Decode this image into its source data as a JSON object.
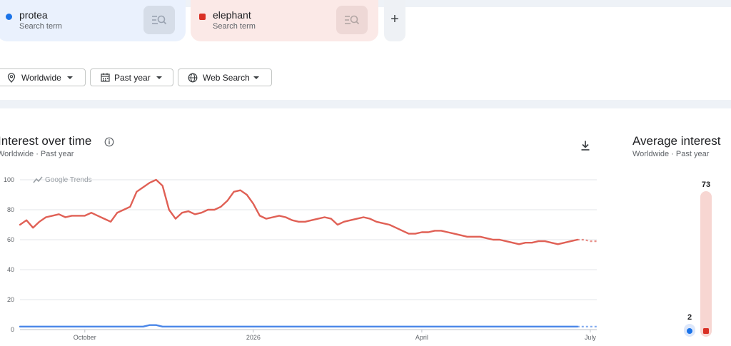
{
  "terms": [
    {
      "name": "protea",
      "subtitle": "Search term",
      "color": "#1a73e8",
      "marker": "circle"
    },
    {
      "name": "elephant",
      "subtitle": "Search term",
      "color": "#d93025",
      "marker": "square"
    }
  ],
  "add_button": {
    "label": "+"
  },
  "filters": {
    "location": "Worldwide",
    "time": "Past year",
    "property": "Web Search"
  },
  "interest_over_time": {
    "title": "Interest over time",
    "subtitle": "Worldwide · Past year",
    "watermark": "Google Trends"
  },
  "average_interest": {
    "title": "Average interest",
    "subtitle": "Worldwide · Past year",
    "values": [
      {
        "term": "protea",
        "value": 2,
        "label": "2",
        "color": "#1a73e8"
      },
      {
        "term": "elephant",
        "value": 73,
        "label": "73",
        "color": "#d93025"
      }
    ]
  },
  "chart_data": {
    "type": "line",
    "ylim": [
      0,
      100
    ],
    "yticks": [
      {
        "value": 0,
        "label": "0"
      },
      {
        "value": 20,
        "label": "20"
      },
      {
        "value": 40,
        "label": "40"
      },
      {
        "value": 60,
        "label": "60"
      },
      {
        "value": 80,
        "label": "80"
      },
      {
        "value": 100,
        "label": "100"
      }
    ],
    "xticks": [
      {
        "index": 10,
        "label": "October"
      },
      {
        "index": 36,
        "label": "2026"
      },
      {
        "index": 62,
        "label": "April"
      },
      {
        "index": 88,
        "label": "July"
      }
    ],
    "grid": true,
    "partial_points": 3,
    "series": [
      {
        "name": "elephant",
        "color": "#e06055",
        "values": [
          70,
          73,
          68,
          72,
          75,
          76,
          77,
          75,
          76,
          76,
          76,
          78,
          76,
          74,
          72,
          78,
          80,
          82,
          92,
          95,
          98,
          100,
          96,
          80,
          74,
          78,
          79,
          77,
          78,
          80,
          80,
          82,
          86,
          92,
          93,
          90,
          84,
          76,
          74,
          75,
          76,
          75,
          73,
          72,
          72,
          73,
          74,
          75,
          74,
          70,
          72,
          73,
          74,
          75,
          74,
          72,
          71,
          70,
          68,
          66,
          64,
          64,
          65,
          65,
          66,
          66,
          65,
          64,
          63,
          62,
          62,
          62,
          61,
          60,
          60,
          59,
          58,
          57,
          58,
          58,
          59,
          59,
          58,
          57,
          58,
          59,
          60,
          60,
          59,
          59
        ]
      },
      {
        "name": "protea",
        "color": "#4a86e8",
        "values": [
          2,
          2,
          2,
          2,
          2,
          2,
          2,
          2,
          2,
          2,
          2,
          2,
          2,
          2,
          2,
          2,
          2,
          2,
          2,
          2,
          3,
          3,
          2,
          2,
          2,
          2,
          2,
          2,
          2,
          2,
          2,
          2,
          2,
          2,
          2,
          2,
          2,
          2,
          2,
          2,
          2,
          2,
          2,
          2,
          2,
          2,
          2,
          2,
          2,
          2,
          2,
          2,
          2,
          2,
          2,
          2,
          2,
          2,
          2,
          2,
          2,
          2,
          2,
          2,
          2,
          2,
          2,
          2,
          2,
          2,
          2,
          2,
          2,
          2,
          2,
          2,
          2,
          2,
          2,
          2,
          2,
          2,
          2,
          2,
          2,
          2,
          2,
          2,
          2,
          2
        ]
      }
    ]
  }
}
